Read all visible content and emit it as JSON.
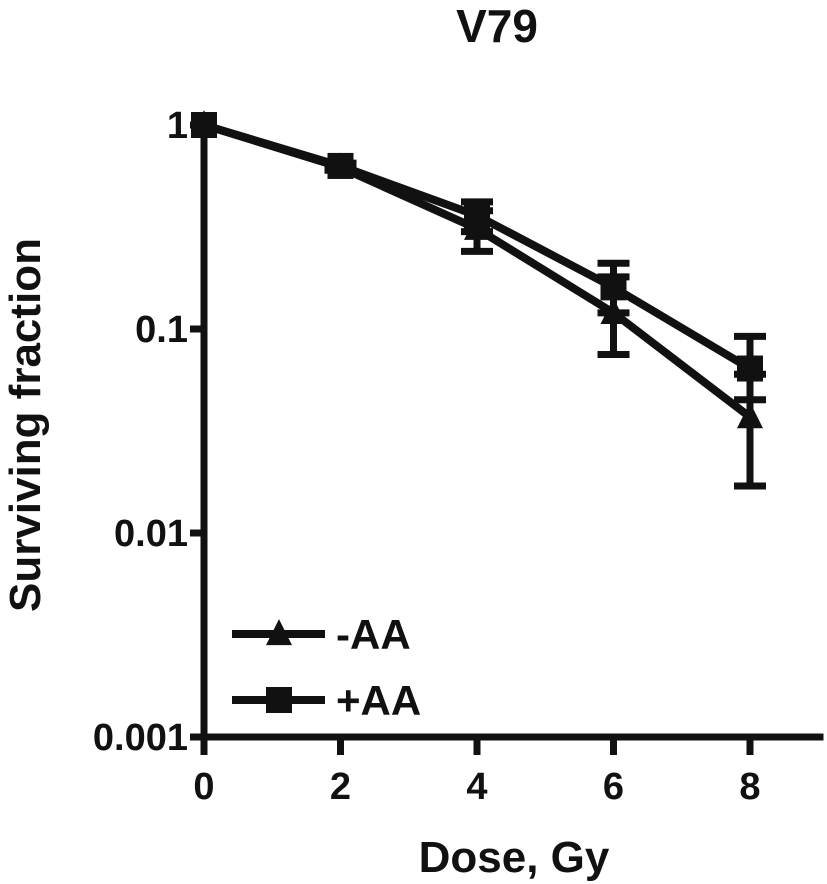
{
  "chart_data": {
    "type": "line",
    "title": "V79",
    "xlabel": "Dose, Gy",
    "ylabel": "Surviving fraction",
    "x": [
      0,
      2,
      4,
      6,
      8
    ],
    "x_ticks": [
      "0",
      "2",
      "4",
      "6",
      "8"
    ],
    "xlim": [
      0,
      9
    ],
    "y_scale": "log",
    "y_ticks": [
      "0.001",
      "0.01",
      "0.1",
      "1"
    ],
    "ylim": [
      0.001,
      1
    ],
    "legend_placement": "bottom-left",
    "grid": false,
    "series": [
      {
        "name": "-AA",
        "marker": "triangle",
        "values": [
          1,
          0.62,
          0.31,
          0.12,
          0.037
        ],
        "error_low": [
          1,
          0.6,
          0.24,
          0.075,
          0.017
        ],
        "error_high": [
          1,
          0.64,
          0.38,
          0.18,
          0.06
        ],
        "color": "#111111"
      },
      {
        "name": "+AA",
        "marker": "square",
        "values": [
          1,
          0.63,
          0.36,
          0.16,
          0.064
        ],
        "error_low": [
          1,
          0.61,
          0.3,
          0.12,
          0.045
        ],
        "error_high": [
          1,
          0.65,
          0.42,
          0.21,
          0.092
        ],
        "color": "#111111"
      }
    ]
  }
}
